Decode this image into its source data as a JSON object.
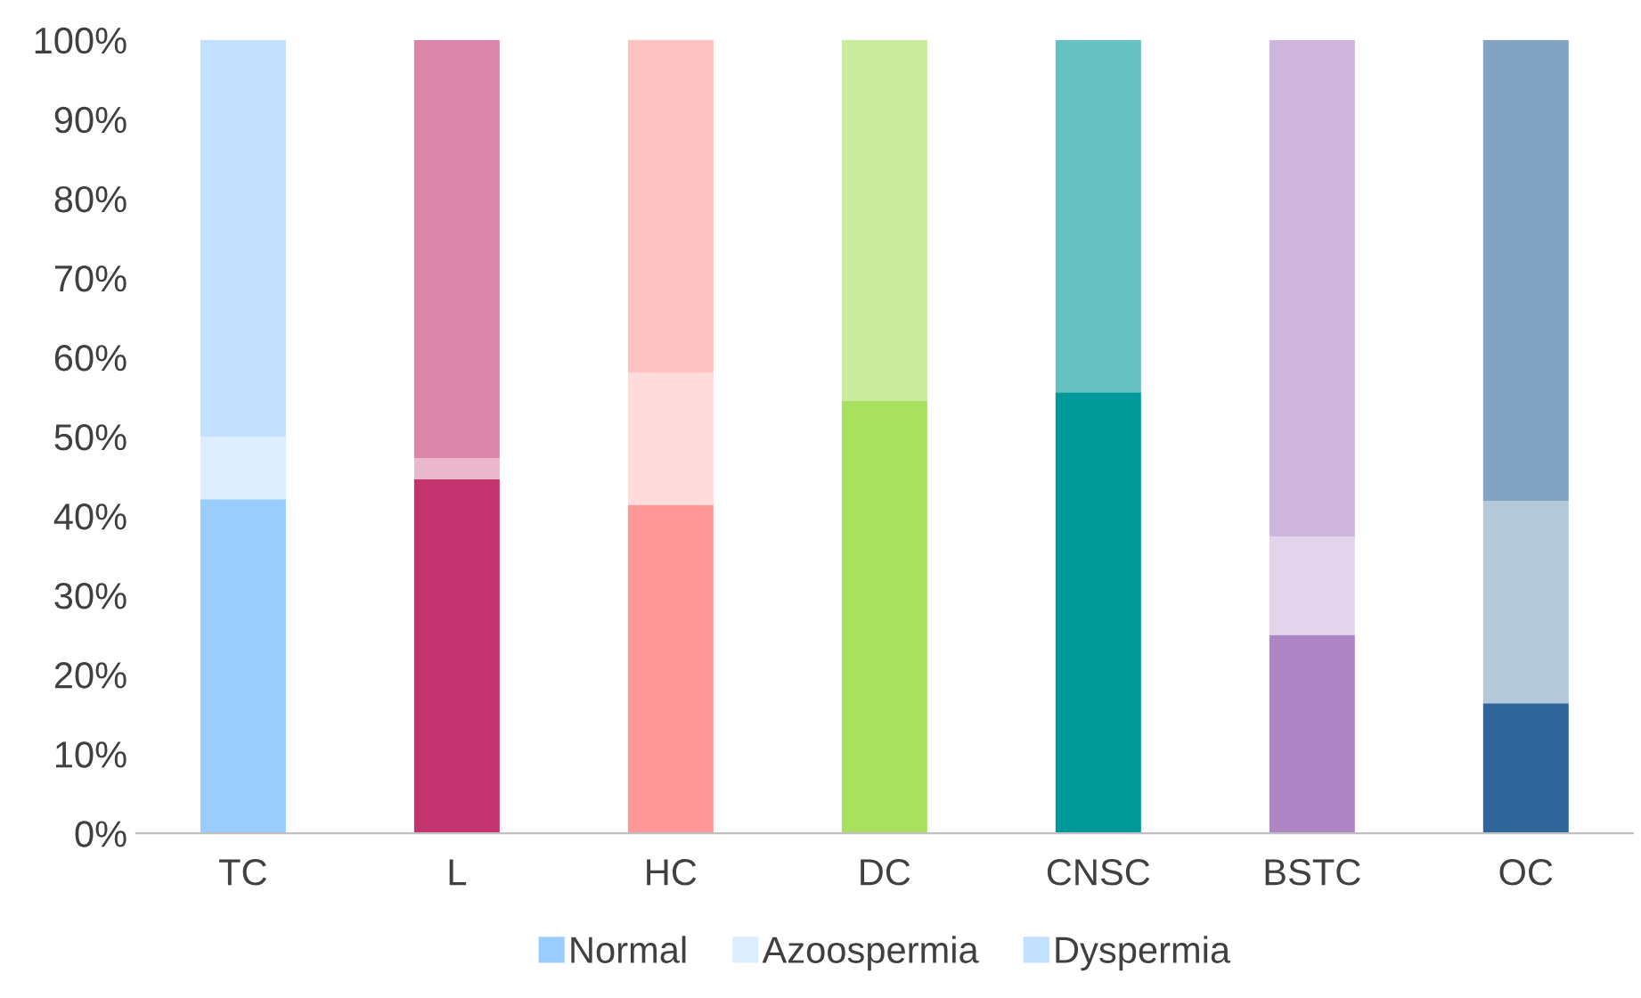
{
  "chart_data": {
    "type": "bar",
    "stacked": true,
    "categories": [
      "TC",
      "L",
      "HC",
      "DC",
      "CNSC",
      "BSTC",
      "OC"
    ],
    "series": [
      {
        "name": "Normal",
        "color": "#99ccff",
        "colors": [
          "#99ccff",
          "#c3336e",
          "#ff9999",
          "#a9e05f",
          "#009999",
          "#ae85c5",
          "#2e6699"
        ],
        "values": [
          42.1,
          44.6,
          41.4,
          54.5,
          55.6,
          25.0,
          16.4
        ]
      },
      {
        "name": "Azoospermia",
        "color": "#dbedff",
        "colors": [
          "#dbedff",
          "#eab8cc",
          "#ffdbdb",
          "#e1f4c7",
          "#a6dbdb",
          "#e3d4eb",
          "#b6c9db"
        ],
        "values": [
          7.9,
          2.7,
          16.7,
          0,
          0,
          12.4,
          25.5
        ]
      },
      {
        "name": "Dyspermia",
        "color": "#c2e0ff",
        "colors": [
          "#c2e0ff",
          "#db85a8",
          "#ffc2c2",
          "#cbec9f",
          "#66c2c2",
          "#ceb6dc",
          "#82a3c2"
        ],
        "values": [
          50.0,
          52.7,
          41.9,
          45.5,
          44.4,
          62.6,
          58.1
        ]
      }
    ],
    "ylim": [
      0,
      100
    ],
    "yticks": [
      {
        "value": 0,
        "label": "0%"
      },
      {
        "value": 10,
        "label": "10%"
      },
      {
        "value": 20,
        "label": "20%"
      },
      {
        "value": 30,
        "label": "30%"
      },
      {
        "value": 40,
        "label": "40%"
      },
      {
        "value": 50,
        "label": "50%"
      },
      {
        "value": 60,
        "label": "60%"
      },
      {
        "value": 70,
        "label": "70%"
      },
      {
        "value": 80,
        "label": "80%"
      },
      {
        "value": 90,
        "label": "90%"
      },
      {
        "value": 100,
        "label": "100%"
      }
    ],
    "grid": false,
    "legend": "bottom"
  }
}
